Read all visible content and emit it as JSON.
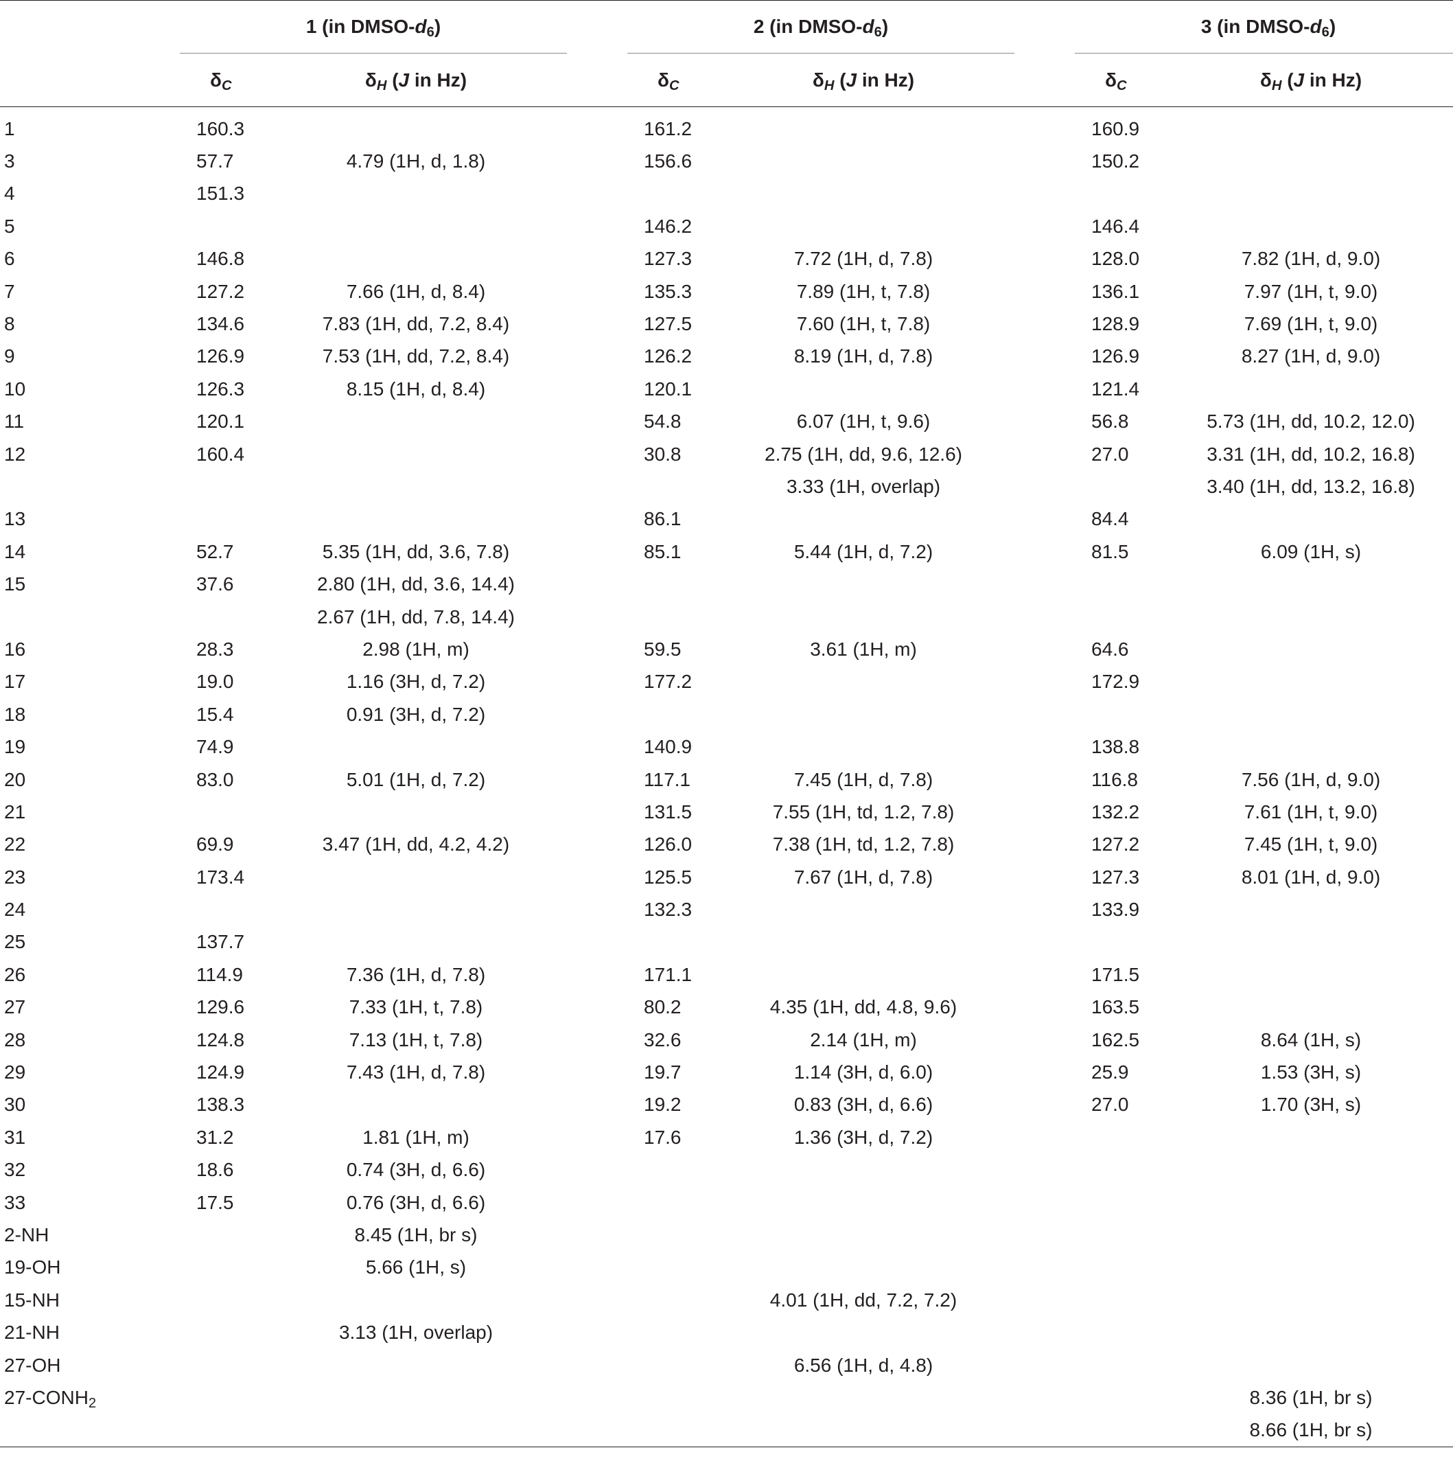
{
  "header": {
    "groups": [
      {
        "num": "1",
        "prefix": " (in DMSO-",
        "d": "d",
        "dsub": "6",
        "suffix": ")"
      },
      {
        "num": "2",
        "prefix": " (in DMSO-",
        "d": "d",
        "dsub": "6",
        "suffix": ")"
      },
      {
        "num": "3",
        "prefix": " (in DMSO-",
        "d": "d",
        "dsub": "6",
        "suffix": ")"
      }
    ],
    "delta_c": {
      "delta": "δ",
      "sub": "C"
    },
    "delta_h": {
      "delta": "δ",
      "sub": "H",
      "open": " (",
      "j": "J",
      "rest": " in Hz)"
    }
  },
  "rows": [
    {
      "pos": "1",
      "c1": "160.3",
      "h1": "",
      "c2": "161.2",
      "h2": "",
      "c3": "160.9",
      "h3": ""
    },
    {
      "pos": "3",
      "c1": "57.7",
      "h1": "4.79 (1H, d, 1.8)",
      "c2": "156.6",
      "h2": "",
      "c3": "150.2",
      "h3": ""
    },
    {
      "pos": "4",
      "c1": "151.3",
      "h1": "",
      "c2": "",
      "h2": "",
      "c3": "",
      "h3": ""
    },
    {
      "pos": "5",
      "c1": "",
      "h1": "",
      "c2": "146.2",
      "h2": "",
      "c3": "146.4",
      "h3": ""
    },
    {
      "pos": "6",
      "c1": "146.8",
      "h1": "",
      "c2": "127.3",
      "h2": "7.72 (1H, d, 7.8)",
      "c3": "128.0",
      "h3": "7.82 (1H, d, 9.0)"
    },
    {
      "pos": "7",
      "c1": "127.2",
      "h1": "7.66 (1H, d, 8.4)",
      "c2": "135.3",
      "h2": "7.89 (1H, t, 7.8)",
      "c3": "136.1",
      "h3": "7.97 (1H, t, 9.0)"
    },
    {
      "pos": "8",
      "c1": "134.6",
      "h1": "7.83 (1H, dd, 7.2, 8.4)",
      "c2": "127.5",
      "h2": "7.60 (1H, t, 7.8)",
      "c3": "128.9",
      "h3": "7.69 (1H, t, 9.0)"
    },
    {
      "pos": "9",
      "c1": "126.9",
      "h1": "7.53 (1H, dd, 7.2, 8.4)",
      "c2": "126.2",
      "h2": "8.19 (1H, d, 7.8)",
      "c3": "126.9",
      "h3": "8.27 (1H, d, 9.0)"
    },
    {
      "pos": "10",
      "c1": "126.3",
      "h1": "8.15 (1H, d, 8.4)",
      "c2": "120.1",
      "h2": "",
      "c3": "121.4",
      "h3": ""
    },
    {
      "pos": "11",
      "c1": "120.1",
      "h1": "",
      "c2": "54.8",
      "h2": "6.07 (1H, t, 9.6)",
      "c3": "56.8",
      "h3": "5.73 (1H, dd, 10.2, 12.0)"
    },
    {
      "pos": "12",
      "c1": "160.4",
      "h1": "",
      "c2": "30.8",
      "h2": "2.75 (1H, dd, 9.6, 12.6)",
      "c3": "27.0",
      "h3": "3.31 (1H, dd, 10.2, 16.8)"
    },
    {
      "pos": "",
      "c1": "",
      "h1": "",
      "c2": "",
      "h2": "3.33 (1H, overlap)",
      "c3": "",
      "h3": "3.40 (1H, dd, 13.2, 16.8)"
    },
    {
      "pos": "13",
      "c1": "",
      "h1": "",
      "c2": "86.1",
      "h2": "",
      "c3": "84.4",
      "h3": ""
    },
    {
      "pos": "14",
      "c1": "52.7",
      "h1": "5.35 (1H, dd, 3.6, 7.8)",
      "c2": "85.1",
      "h2": "5.44 (1H, d, 7.2)",
      "c3": "81.5",
      "h3": "6.09 (1H, s)"
    },
    {
      "pos": "15",
      "c1": "37.6",
      "h1": "2.80 (1H, dd, 3.6, 14.4)",
      "c2": "",
      "h2": "",
      "c3": "",
      "h3": ""
    },
    {
      "pos": "",
      "c1": "",
      "h1": "2.67 (1H, dd, 7.8, 14.4)",
      "c2": "",
      "h2": "",
      "c3": "",
      "h3": ""
    },
    {
      "pos": "16",
      "c1": "28.3",
      "h1": "2.98 (1H, m)",
      "c2": "59.5",
      "h2": "3.61 (1H, m)",
      "c3": "64.6",
      "h3": ""
    },
    {
      "pos": "17",
      "c1": "19.0",
      "h1": "1.16 (3H, d, 7.2)",
      "c2": "177.2",
      "h2": "",
      "c3": "172.9",
      "h3": ""
    },
    {
      "pos": "18",
      "c1": "15.4",
      "h1": "0.91 (3H, d, 7.2)",
      "c2": "",
      "h2": "",
      "c3": "",
      "h3": ""
    },
    {
      "pos": "19",
      "c1": "74.9",
      "h1": "",
      "c2": "140.9",
      "h2": "",
      "c3": "138.8",
      "h3": ""
    },
    {
      "pos": "20",
      "c1": "83.0",
      "h1": "5.01 (1H, d, 7.2)",
      "c2": "117.1",
      "h2": "7.45 (1H, d, 7.8)",
      "c3": "116.8",
      "h3": "7.56 (1H, d, 9.0)"
    },
    {
      "pos": "21",
      "c1": "",
      "h1": "",
      "c2": "131.5",
      "h2": "7.55 (1H, td, 1.2, 7.8)",
      "c3": "132.2",
      "h3": "7.61 (1H, t, 9.0)"
    },
    {
      "pos": "22",
      "c1": "69.9",
      "h1": "3.47 (1H, dd, 4.2, 4.2)",
      "c2": "126.0",
      "h2": "7.38 (1H, td, 1.2, 7.8)",
      "c3": "127.2",
      "h3": "7.45 (1H, t, 9.0)"
    },
    {
      "pos": "23",
      "c1": "173.4",
      "h1": "",
      "c2": "125.5",
      "h2": "7.67 (1H, d, 7.8)",
      "c3": "127.3",
      "h3": "8.01 (1H, d, 9.0)"
    },
    {
      "pos": "24",
      "c1": "",
      "h1": "",
      "c2": "132.3",
      "h2": "",
      "c3": "133.9",
      "h3": ""
    },
    {
      "pos": "25",
      "c1": "137.7",
      "h1": "",
      "c2": "",
      "h2": "",
      "c3": "",
      "h3": ""
    },
    {
      "pos": "26",
      "c1": "114.9",
      "h1": "7.36 (1H, d, 7.8)",
      "c2": "171.1",
      "h2": "",
      "c3": "171.5",
      "h3": ""
    },
    {
      "pos": "27",
      "c1": "129.6",
      "h1": "7.33 (1H, t, 7.8)",
      "c2": "80.2",
      "h2": "4.35 (1H, dd, 4.8, 9.6)",
      "c3": "163.5",
      "h3": ""
    },
    {
      "pos": "28",
      "c1": "124.8",
      "h1": "7.13 (1H, t, 7.8)",
      "c2": "32.6",
      "h2": "2.14 (1H, m)",
      "c3": "162.5",
      "h3": "8.64 (1H, s)"
    },
    {
      "pos": "29",
      "c1": "124.9",
      "h1": "7.43 (1H, d, 7.8)",
      "c2": "19.7",
      "h2": "1.14 (3H, d, 6.0)",
      "c3": "25.9",
      "h3": "1.53 (3H, s)"
    },
    {
      "pos": "30",
      "c1": "138.3",
      "h1": "",
      "c2": "19.2",
      "h2": "0.83 (3H, d, 6.6)",
      "c3": "27.0",
      "h3": "1.70 (3H, s)"
    },
    {
      "pos": "31",
      "c1": "31.2",
      "h1": "1.81 (1H, m)",
      "c2": "17.6",
      "h2": "1.36 (3H, d, 7.2)",
      "c3": "",
      "h3": ""
    },
    {
      "pos": "32",
      "c1": "18.6",
      "h1": "0.74 (3H, d, 6.6)",
      "c2": "",
      "h2": "",
      "c3": "",
      "h3": ""
    },
    {
      "pos": "33",
      "c1": "17.5",
      "h1": "0.76 (3H, d, 6.6)",
      "c2": "",
      "h2": "",
      "c3": "",
      "h3": ""
    },
    {
      "pos": "2-NH",
      "c1": "",
      "h1": "8.45 (1H, br s)",
      "c2": "",
      "h2": "",
      "c3": "",
      "h3": ""
    },
    {
      "pos": "19-OH",
      "c1": "",
      "h1": "5.66 (1H, s)",
      "c2": "",
      "h2": "",
      "c3": "",
      "h3": ""
    },
    {
      "pos": "15-NH",
      "c1": "",
      "h1": "",
      "c2": "",
      "h2": "4.01 (1H, dd, 7.2, 7.2)",
      "c3": "",
      "h3": ""
    },
    {
      "pos": "21-NH",
      "c1": "",
      "h1": "3.13 (1H, overlap)",
      "c2": "",
      "h2": "",
      "c3": "",
      "h3": ""
    },
    {
      "pos": "27-OH",
      "c1": "",
      "h1": "",
      "c2": "",
      "h2": "6.56 (1H, d, 4.8)",
      "c3": "",
      "h3": ""
    },
    {
      "pos": "27-CONH",
      "pos_sub": "2",
      "c1": "",
      "h1": "",
      "c2": "",
      "h2": "",
      "c3": "",
      "h3": "8.36 (1H, br s)"
    },
    {
      "pos": "",
      "c1": "",
      "h1": "",
      "c2": "",
      "h2": "",
      "c3": "",
      "h3": "8.66 (1H, br s)"
    }
  ]
}
